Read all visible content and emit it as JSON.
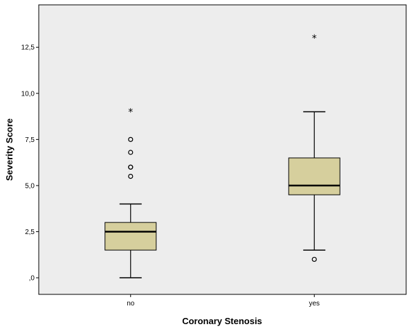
{
  "chart_data": {
    "type": "boxplot",
    "title": "",
    "xlabel": "Coronary Stenosis",
    "ylabel": "Severity Score",
    "ylim": [
      -0.9,
      14.8
    ],
    "yticks": [
      0,
      2.5,
      5,
      7.5,
      10,
      12.5
    ],
    "ytick_labels": [
      ",0",
      "2,5",
      "5,0",
      "7,5",
      "10,0",
      "12,5"
    ],
    "categories": [
      "no",
      "yes"
    ],
    "grid": false,
    "background_color": "#ededed",
    "box_color": "#d6cf9d",
    "boxes": [
      {
        "category": "no",
        "min": 0,
        "q1": 1.5,
        "median": 2.5,
        "q3": 3,
        "max": 4,
        "outliers": [
          5.5,
          6,
          6,
          6.8,
          7.5
        ],
        "extremes": [
          9
        ]
      },
      {
        "category": "yes",
        "min": 1.5,
        "q1": 4.5,
        "median": 5,
        "q3": 6.5,
        "max": 9,
        "outliers": [
          1
        ],
        "extremes": [
          13
        ]
      }
    ]
  }
}
